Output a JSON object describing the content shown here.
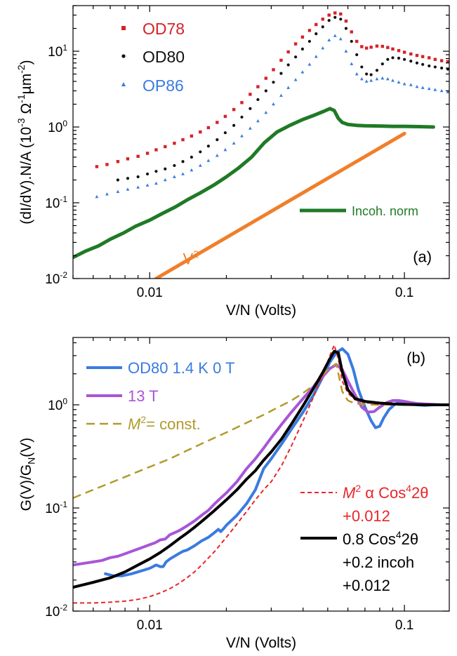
{
  "chart_data": [
    {
      "panel": "(a)",
      "type": "scatter",
      "xlabel": "V/N (Volts)",
      "ylabel": "(dI/dV).N/A   (10⁻³ Ω⁻¹µm⁻²)",
      "x_scale": "log",
      "y_scale": "log",
      "xlim": [
        0.005,
        0.15
      ],
      "ylim": [
        0.01,
        40
      ],
      "x_ticks": [
        {
          "v": 0.01,
          "label": "0.01"
        },
        {
          "v": 0.1,
          "label": "0.1"
        }
      ],
      "y_ticks": [
        {
          "v": 0.01,
          "label": "10⁻²"
        },
        {
          "v": 0.1,
          "label": "10⁻¹"
        },
        {
          "v": 1,
          "label": "10⁰"
        },
        {
          "v": 10,
          "label": "10¹"
        }
      ],
      "legend_position": "top-left",
      "annotations": [
        {
          "text": "V²",
          "color": "#f07f2a",
          "x": 0.0135,
          "y": 0.0155
        },
        {
          "text": "(a)",
          "color": "#000000",
          "x": 0.108,
          "y": 0.0165
        }
      ],
      "series": [
        {
          "name": "OD78",
          "style": "markers",
          "marker": "square",
          "color": "#d62228",
          "legend": true,
          "x": [
            0.0062,
            0.0068,
            0.0075,
            0.0082,
            0.009,
            0.0098,
            0.0106,
            0.0115,
            0.0125,
            0.0135,
            0.0146,
            0.0158,
            0.017,
            0.0184,
            0.0198,
            0.0214,
            0.023,
            0.0248,
            0.0266,
            0.0286,
            0.0306,
            0.0328,
            0.035,
            0.0374,
            0.0398,
            0.0424,
            0.045,
            0.0478,
            0.0506,
            0.0534,
            0.0562,
            0.059,
            0.062,
            0.065,
            0.068,
            0.071,
            0.074,
            0.078,
            0.082,
            0.086,
            0.09,
            0.095,
            0.1,
            0.106,
            0.112,
            0.118,
            0.125,
            0.132,
            0.14,
            0.148
          ],
          "y": [
            0.3,
            0.32,
            0.35,
            0.38,
            0.41,
            0.45,
            0.5,
            0.55,
            0.61,
            0.68,
            0.76,
            0.86,
            0.98,
            1.15,
            1.38,
            1.7,
            2.1,
            2.7,
            3.4,
            4.4,
            5.7,
            7.6,
            9.8,
            12.5,
            15.4,
            18.8,
            22.5,
            26.5,
            30,
            32,
            31,
            25,
            18,
            13.5,
            11.5,
            11,
            11.3,
            11.7,
            11.6,
            11.2,
            10.7,
            10.2,
            9.7,
            9.2,
            8.8,
            8.5,
            8.2,
            7.8,
            7.5,
            7.3
          ]
        },
        {
          "name": "OD80",
          "style": "markers",
          "marker": "circle",
          "color": "#111111",
          "legend": true,
          "x": [
            0.0075,
            0.0082,
            0.009,
            0.0098,
            0.0106,
            0.0115,
            0.0125,
            0.0135,
            0.0146,
            0.0158,
            0.017,
            0.0184,
            0.0198,
            0.0214,
            0.023,
            0.0248,
            0.0266,
            0.0286,
            0.0306,
            0.0328,
            0.035,
            0.0374,
            0.0398,
            0.0424,
            0.045,
            0.0478,
            0.0506,
            0.0534,
            0.0562,
            0.059,
            0.062,
            0.065,
            0.068,
            0.071,
            0.074,
            0.078,
            0.082,
            0.086,
            0.09,
            0.095,
            0.1,
            0.106,
            0.112,
            0.118,
            0.125,
            0.132,
            0.14,
            0.148
          ],
          "y": [
            0.2,
            0.21,
            0.22,
            0.24,
            0.26,
            0.28,
            0.31,
            0.35,
            0.4,
            0.47,
            0.56,
            0.68,
            0.84,
            1.05,
            1.35,
            1.75,
            2.3,
            3.0,
            3.9,
            5.1,
            6.6,
            8.4,
            10.7,
            13.5,
            17,
            21,
            25.5,
            28,
            26.5,
            20,
            13.5,
            9,
            6.2,
            5.0,
            4.9,
            5.6,
            6.8,
            7.8,
            8.2,
            8.1,
            7.8,
            7.4,
            7.0,
            6.7,
            6.4,
            6.2,
            6.0,
            5.8
          ]
        },
        {
          "name": "OP86",
          "style": "markers",
          "marker": "triangle",
          "color": "#3a7be0",
          "legend": true,
          "x": [
            0.0062,
            0.0068,
            0.0075,
            0.0082,
            0.009,
            0.0098,
            0.0106,
            0.0115,
            0.0125,
            0.0135,
            0.0146,
            0.0158,
            0.017,
            0.0184,
            0.0198,
            0.0214,
            0.023,
            0.0248,
            0.0266,
            0.0286,
            0.0306,
            0.0328,
            0.035,
            0.0374,
            0.0398,
            0.0424,
            0.045,
            0.0478,
            0.0506,
            0.0534,
            0.0562,
            0.059,
            0.062,
            0.065,
            0.068,
            0.071,
            0.074,
            0.078,
            0.082,
            0.086,
            0.09,
            0.095,
            0.1,
            0.106,
            0.112,
            0.118,
            0.125,
            0.132,
            0.14,
            0.148
          ],
          "y": [
            0.12,
            0.13,
            0.14,
            0.15,
            0.16,
            0.17,
            0.18,
            0.2,
            0.22,
            0.24,
            0.27,
            0.31,
            0.36,
            0.42,
            0.5,
            0.61,
            0.76,
            0.96,
            1.2,
            1.55,
            2.0,
            2.6,
            3.3,
            4.2,
            5.3,
            6.7,
            8.5,
            11,
            14,
            16,
            14.5,
            10,
            6.8,
            5.0,
            4.3,
            4.0,
            4.1,
            4.3,
            4.4,
            4.3,
            4.1,
            3.9,
            3.7,
            3.6,
            3.4,
            3.3,
            3.2,
            3.1,
            3.0,
            2.9
          ]
        },
        {
          "name": "Incoh. norm",
          "style": "line",
          "color": "#1f7a25",
          "width": 5,
          "legend": true,
          "x": [
            0.005,
            0.0056,
            0.0063,
            0.007,
            0.0079,
            0.0088,
            0.01,
            0.0112,
            0.0126,
            0.0141,
            0.0158,
            0.0178,
            0.02,
            0.0224,
            0.0251,
            0.0282,
            0.0316,
            0.0355,
            0.0398,
            0.0447,
            0.048,
            0.051,
            0.053,
            0.055,
            0.057,
            0.06,
            0.065,
            0.07,
            0.08,
            0.09,
            0.1,
            0.115,
            0.13
          ],
          "y": [
            0.019,
            0.023,
            0.027,
            0.033,
            0.04,
            0.049,
            0.059,
            0.072,
            0.088,
            0.11,
            0.135,
            0.17,
            0.22,
            0.29,
            0.4,
            0.62,
            0.86,
            1.05,
            1.25,
            1.45,
            1.6,
            1.75,
            1.65,
            1.3,
            1.15,
            1.08,
            1.05,
            1.04,
            1.03,
            1.02,
            1.02,
            1.01,
            1.0
          ]
        },
        {
          "name": "V²",
          "style": "line",
          "color": "#f07f2a",
          "width": 5,
          "legend": false,
          "x": [
            0.0106,
            0.1
          ],
          "y": [
            0.01,
            0.82
          ]
        }
      ]
    },
    {
      "panel": "(b)",
      "type": "line",
      "xlabel": "V/N (Volts)",
      "ylabel": "G(V)/G_N(V)",
      "x_scale": "log",
      "y_scale": "log",
      "xlim": [
        0.005,
        0.15
      ],
      "ylim": [
        0.01,
        4.5
      ],
      "x_ticks": [
        {
          "v": 0.01,
          "label": "0.01"
        },
        {
          "v": 0.1,
          "label": "0.1"
        }
      ],
      "y_ticks": [
        {
          "v": 0.01,
          "label": "10⁻²"
        },
        {
          "v": 0.1,
          "label": "10⁻¹"
        },
        {
          "v": 1,
          "label": "10⁰"
        }
      ],
      "legend_position": "left",
      "annotations": [
        {
          "text": "(b)",
          "color": "#000000",
          "x": 0.102,
          "y": 2.55
        }
      ],
      "series": [
        {
          "name": "OD80 1.4 K 0 T",
          "style": "line",
          "color": "#3a7be0",
          "width": 4,
          "x": [
            0.0067,
            0.0072,
            0.0078,
            0.0085,
            0.009,
            0.0095,
            0.01,
            0.0106,
            0.011,
            0.0113,
            0.0116,
            0.012,
            0.0125,
            0.013,
            0.0135,
            0.014,
            0.015,
            0.016,
            0.017,
            0.018,
            0.0186,
            0.019,
            0.0195,
            0.02,
            0.022,
            0.024,
            0.026,
            0.028,
            0.03,
            0.033,
            0.036,
            0.04,
            0.044,
            0.048,
            0.051,
            0.054,
            0.057,
            0.06,
            0.063,
            0.066,
            0.07,
            0.074,
            0.077,
            0.08,
            0.083,
            0.087,
            0.092,
            0.097,
            0.1,
            0.106,
            0.112,
            0.12,
            0.13,
            0.14,
            0.15
          ],
          "y": [
            0.023,
            0.022,
            0.022,
            0.023,
            0.024,
            0.025,
            0.026,
            0.028,
            0.027,
            0.027,
            0.03,
            0.032,
            0.034,
            0.036,
            0.038,
            0.039,
            0.043,
            0.048,
            0.052,
            0.058,
            0.062,
            0.059,
            0.063,
            0.068,
            0.085,
            0.11,
            0.15,
            0.24,
            0.3,
            0.42,
            0.58,
            0.85,
            1.25,
            1.9,
            2.6,
            3.2,
            3.5,
            3.1,
            2.2,
            1.4,
            0.95,
            0.7,
            0.6,
            0.62,
            0.75,
            0.9,
            1.02,
            1.08,
            1.06,
            1.02,
            1.0,
            0.99,
            1.0,
            1.0,
            1.0
          ]
        },
        {
          "name": "13 T",
          "style": "line",
          "color": "#a855d8",
          "width": 4,
          "x": [
            0.005,
            0.006,
            0.0065,
            0.007,
            0.0075,
            0.008,
            0.0085,
            0.009,
            0.0095,
            0.01,
            0.0105,
            0.011,
            0.0115,
            0.012,
            0.013,
            0.014,
            0.015,
            0.016,
            0.017,
            0.018,
            0.019,
            0.02,
            0.022,
            0.024,
            0.026,
            0.028,
            0.03,
            0.033,
            0.036,
            0.04,
            0.044,
            0.048,
            0.051,
            0.054,
            0.057,
            0.06,
            0.064,
            0.068,
            0.072,
            0.076,
            0.08,
            0.085,
            0.09,
            0.095,
            0.1,
            0.106,
            0.112,
            0.12,
            0.13,
            0.14,
            0.15
          ],
          "y": [
            0.028,
            0.03,
            0.031,
            0.033,
            0.034,
            0.036,
            0.038,
            0.04,
            0.042,
            0.044,
            0.046,
            0.049,
            0.05,
            0.055,
            0.06,
            0.067,
            0.075,
            0.085,
            0.095,
            0.11,
            0.125,
            0.14,
            0.18,
            0.24,
            0.3,
            0.38,
            0.48,
            0.65,
            0.85,
            1.15,
            1.5,
            1.9,
            2.25,
            2.45,
            2.2,
            1.7,
            1.25,
            0.95,
            0.85,
            0.86,
            0.95,
            1.05,
            1.1,
            1.1,
            1.08,
            1.05,
            1.03,
            1.02,
            1.01,
            1.0,
            1.0
          ]
        },
        {
          "name": "M²= const.",
          "style": "dash",
          "color": "#b19a2c",
          "width": 2.5,
          "x": [
            0.005,
            0.006,
            0.007,
            0.008,
            0.009,
            0.01,
            0.012,
            0.014,
            0.016,
            0.018,
            0.02,
            0.024,
            0.028,
            0.032,
            0.036,
            0.04,
            0.044,
            0.048,
            0.051,
            0.054,
            0.057,
            0.06,
            0.064,
            0.07,
            0.08,
            0.09,
            0.1,
            0.12,
            0.15
          ],
          "y": [
            0.125,
            0.15,
            0.175,
            0.2,
            0.225,
            0.25,
            0.3,
            0.36,
            0.42,
            0.48,
            0.54,
            0.67,
            0.8,
            0.95,
            1.1,
            1.3,
            1.55,
            1.95,
            2.3,
            2.5,
            1.35,
            1.1,
            1.03,
            1.01,
            1.0,
            1.0,
            1.0,
            1.0,
            1.0
          ]
        },
        {
          "name": "M² α Cos⁴2θ\n+0.012",
          "style": "dash",
          "color": "#e8262a",
          "width": 2,
          "x": [
            0.005,
            0.006,
            0.007,
            0.008,
            0.009,
            0.01,
            0.011,
            0.012,
            0.013,
            0.014,
            0.015,
            0.016,
            0.018,
            0.02,
            0.022,
            0.024,
            0.026,
            0.028,
            0.03,
            0.033,
            0.036,
            0.04,
            0.044,
            0.048,
            0.051,
            0.053,
            0.055,
            0.057,
            0.06,
            0.064,
            0.07,
            0.08,
            0.09,
            0.1,
            0.12,
            0.15
          ],
          "y": [
            0.012,
            0.012,
            0.0122,
            0.0125,
            0.013,
            0.0138,
            0.015,
            0.0165,
            0.0185,
            0.021,
            0.024,
            0.028,
            0.038,
            0.052,
            0.07,
            0.092,
            0.12,
            0.15,
            0.18,
            0.26,
            0.4,
            0.7,
            1.2,
            2.0,
            3.0,
            3.8,
            2.8,
            1.7,
            1.3,
            1.12,
            1.05,
            1.02,
            1.01,
            1.0,
            1.0,
            1.0
          ]
        },
        {
          "name": "0.8 Cos⁴2θ\n+0.2 incoh\n+0.012",
          "style": "line",
          "color": "#000000",
          "width": 4,
          "x": [
            0.005,
            0.006,
            0.007,
            0.008,
            0.009,
            0.01,
            0.011,
            0.012,
            0.013,
            0.014,
            0.015,
            0.016,
            0.018,
            0.02,
            0.022,
            0.024,
            0.026,
            0.028,
            0.03,
            0.033,
            0.036,
            0.04,
            0.044,
            0.048,
            0.051,
            0.053,
            0.055,
            0.057,
            0.06,
            0.064,
            0.07,
            0.08,
            0.09,
            0.1,
            0.12,
            0.15
          ],
          "y": [
            0.017,
            0.019,
            0.021,
            0.024,
            0.028,
            0.032,
            0.037,
            0.043,
            0.05,
            0.057,
            0.065,
            0.074,
            0.095,
            0.12,
            0.15,
            0.19,
            0.23,
            0.29,
            0.35,
            0.47,
            0.65,
            0.98,
            1.45,
            2.1,
            2.8,
            3.3,
            3.2,
            2.1,
            1.4,
            1.15,
            1.08,
            1.04,
            1.02,
            1.01,
            1.0,
            1.0
          ]
        }
      ]
    }
  ]
}
